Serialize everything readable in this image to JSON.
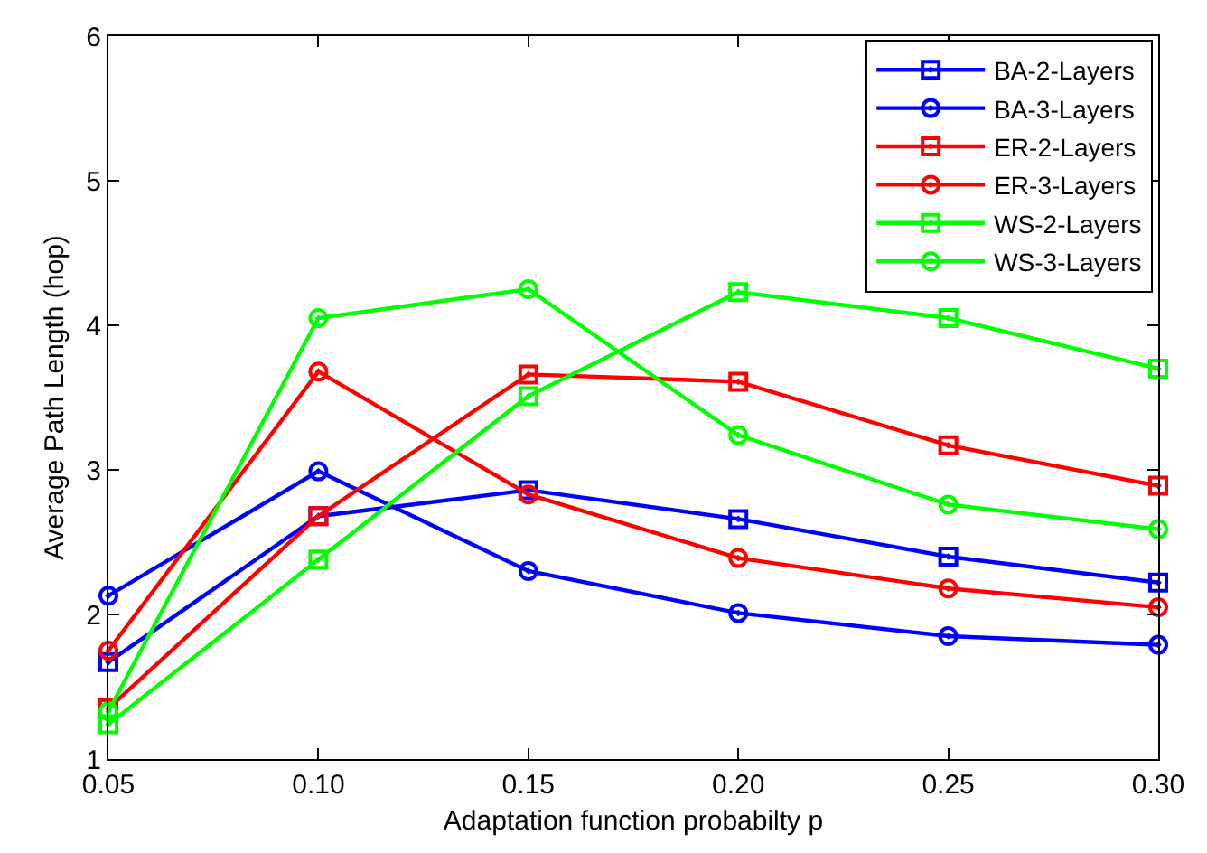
{
  "chart_data": {
    "type": "line",
    "xlabel": "Adaptation function probabilty p",
    "ylabel": "Average Path Length (hop)",
    "x": [
      0.05,
      0.1,
      0.15,
      0.2,
      0.25,
      0.3
    ],
    "xlim": [
      0.05,
      0.3
    ],
    "xticks": [
      {
        "value": 0.05,
        "label": "0.05"
      },
      {
        "value": 0.1,
        "label": "0.10"
      },
      {
        "value": 0.15,
        "label": "0.15"
      },
      {
        "value": 0.2,
        "label": "0.20"
      },
      {
        "value": 0.25,
        "label": "0.25"
      },
      {
        "value": 0.3,
        "label": "0.30"
      }
    ],
    "ylim": [
      1,
      6
    ],
    "yticks": [
      1,
      2,
      3,
      4,
      5,
      6
    ],
    "legend": "top right",
    "line_style": "solid",
    "series": [
      {
        "name": "BA-2-Layers",
        "color": "#0000ff",
        "marker": "square",
        "values": [
          1.67,
          2.68,
          2.86,
          2.66,
          2.4,
          2.22
        ]
      },
      {
        "name": "BA-3-Layers",
        "color": "#0000ff",
        "marker": "circle",
        "values": [
          2.13,
          2.99,
          2.3,
          2.01,
          1.85,
          1.79
        ]
      },
      {
        "name": "ER-2-Layers",
        "color": "#ff0000",
        "marker": "square",
        "values": [
          1.35,
          2.68,
          3.66,
          3.61,
          3.17,
          2.89
        ]
      },
      {
        "name": "ER-3-Layers",
        "color": "#ff0000",
        "marker": "circle",
        "values": [
          1.75,
          3.68,
          2.83,
          2.39,
          2.18,
          2.05
        ]
      },
      {
        "name": "WS-2-Layers",
        "color": "#00ff00",
        "marker": "square",
        "values": [
          1.24,
          2.38,
          3.51,
          4.23,
          4.05,
          3.7
        ]
      },
      {
        "name": "WS-3-Layers",
        "color": "#00ff00",
        "marker": "circle",
        "values": [
          1.33,
          4.05,
          4.25,
          3.24,
          2.76,
          2.59
        ]
      }
    ]
  }
}
